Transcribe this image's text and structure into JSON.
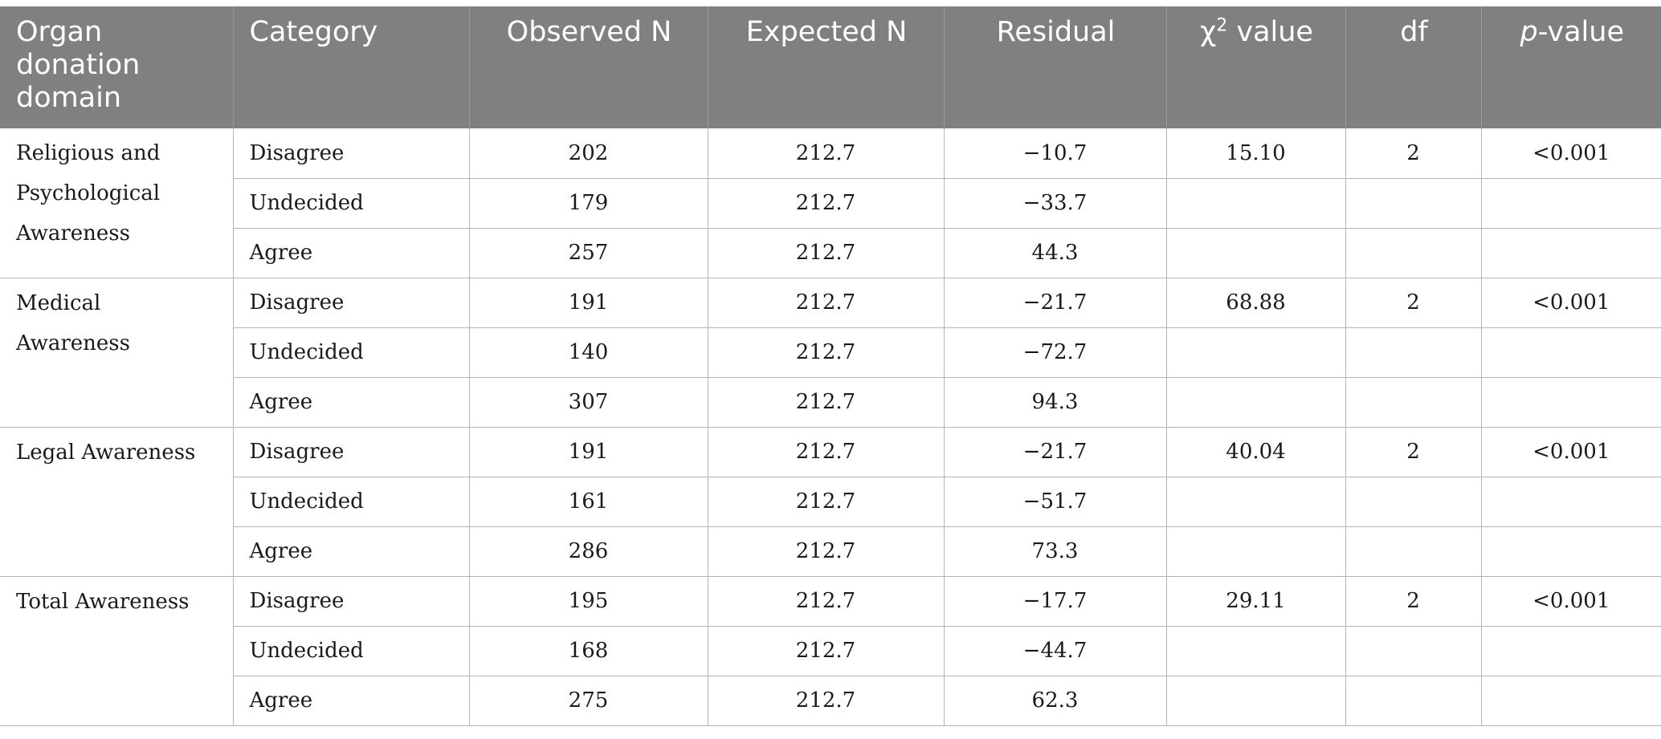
{
  "table": {
    "headers": {
      "domain": "Organ donation domain",
      "category": "Category",
      "observed": "Observed N",
      "expected": "Expected N",
      "residual": "Residual",
      "chi_symbol": "χ",
      "chi_sup": "2",
      "chi_rest": " value",
      "df": "df",
      "p_italic": "p",
      "p_rest": "-value"
    },
    "groups": [
      {
        "domain": "Religious and Psychological Awareness",
        "chi2": "15.10",
        "df": "2",
        "p": "<0.001",
        "rows": [
          {
            "category": "Disagree",
            "observed": "202",
            "expected": "212.7",
            "residual": "−10.7"
          },
          {
            "category": "Undecided",
            "observed": "179",
            "expected": "212.7",
            "residual": "−33.7"
          },
          {
            "category": "Agree",
            "observed": "257",
            "expected": "212.7",
            "residual": "44.3"
          }
        ]
      },
      {
        "domain": "Medical Awareness",
        "chi2": "68.88",
        "df": "2",
        "p": "<0.001",
        "rows": [
          {
            "category": "Disagree",
            "observed": "191",
            "expected": "212.7",
            "residual": "−21.7"
          },
          {
            "category": "Undecided",
            "observed": "140",
            "expected": "212.7",
            "residual": "−72.7"
          },
          {
            "category": "Agree",
            "observed": "307",
            "expected": "212.7",
            "residual": "94.3"
          }
        ]
      },
      {
        "domain": "Legal Awareness",
        "chi2": "40.04",
        "df": "2",
        "p": "<0.001",
        "rows": [
          {
            "category": "Disagree",
            "observed": "191",
            "expected": "212.7",
            "residual": "−21.7"
          },
          {
            "category": "Undecided",
            "observed": "161",
            "expected": "212.7",
            "residual": "−51.7"
          },
          {
            "category": "Agree",
            "observed": "286",
            "expected": "212.7",
            "residual": "73.3"
          }
        ]
      },
      {
        "domain": "Total Awareness",
        "chi2": "29.11",
        "df": "2",
        "p": "<0.001",
        "rows": [
          {
            "category": "Disagree",
            "observed": "195",
            "expected": "212.7",
            "residual": "−17.7"
          },
          {
            "category": "Undecided",
            "observed": "168",
            "expected": "212.7",
            "residual": "−44.7"
          },
          {
            "category": "Agree",
            "observed": "275",
            "expected": "212.7",
            "residual": "62.3"
          }
        ]
      }
    ],
    "colors": {
      "header_bg": "#808080",
      "header_text": "#ffffff",
      "border": "#b4b4b4"
    }
  }
}
